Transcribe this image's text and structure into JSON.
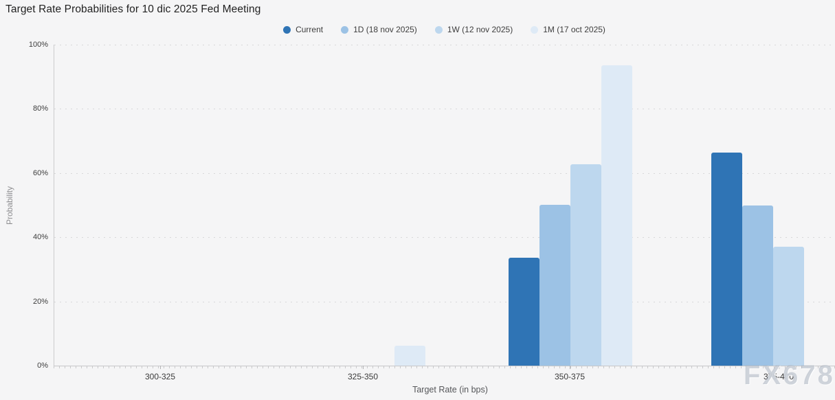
{
  "title": "Target Rate Probabilities for 10 dic 2025 Fed Meeting",
  "watermark": "FX678",
  "legend": [
    {
      "label": "Current",
      "color": "#2F74B5"
    },
    {
      "label": "1D (18 nov 2025)",
      "color": "#9CC2E5"
    },
    {
      "label": "1W (12 nov 2025)",
      "color": "#BDD7EE"
    },
    {
      "label": "1M (17 oct 2025)",
      "color": "#DEEAF6"
    }
  ],
  "chart_data": {
    "type": "bar",
    "title": "Target Rate Probabilities for 10 dic 2025 Fed Meeting",
    "xlabel": "Target Rate (in bps)",
    "ylabel": "Probability",
    "ylim": [
      0,
      100
    ],
    "yticks": [
      0,
      20,
      40,
      60,
      80,
      100
    ],
    "ytick_labels": [
      "0%",
      "20%",
      "40%",
      "60%",
      "80%",
      "100%"
    ],
    "categories": [
      "300-325",
      "325-350",
      "350-375",
      "375-400"
    ],
    "series": [
      {
        "name": "Current",
        "color": "#2F74B5",
        "values": [
          0,
          0,
          33.6,
          66.4
        ]
      },
      {
        "name": "1D (18 nov 2025)",
        "color": "#9CC2E5",
        "values": [
          0,
          0,
          50.2,
          49.8
        ]
      },
      {
        "name": "1W (12 nov 2025)",
        "color": "#BDD7EE",
        "values": [
          0,
          0,
          62.8,
          37.1
        ]
      },
      {
        "name": "1M (17 oct 2025)",
        "color": "#DEEAF6",
        "values": [
          0,
          6.3,
          93.6,
          0
        ]
      }
    ],
    "grid": "dotted-horizontal",
    "legend_position": "top-center"
  }
}
